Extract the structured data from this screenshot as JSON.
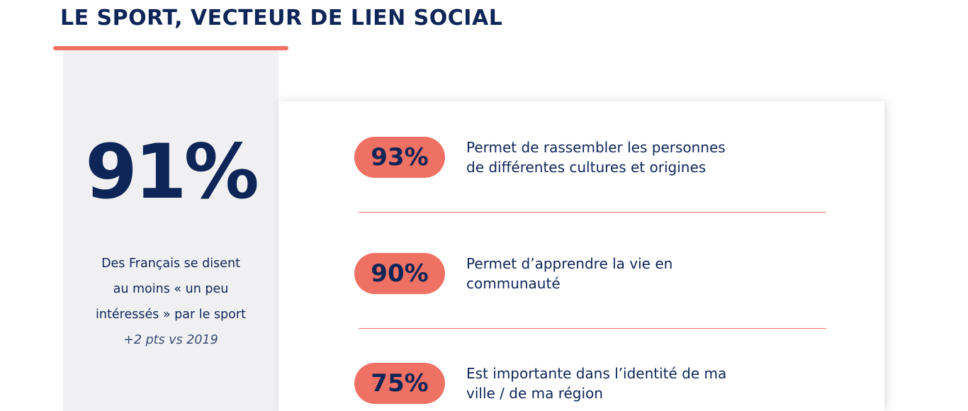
{
  "header": {
    "title": "LE SPORT, VECTEUR DE LIEN SOCIAL"
  },
  "summary": {
    "stat": "91%",
    "description_lines": [
      "Des Français se disent",
      "au moins « un peu",
      "intéressés » par le sport"
    ],
    "note": "+2 pts vs 2019"
  },
  "items": [
    {
      "percent": "93%",
      "lines": [
        "Permet de rassembler les personnes",
        "de différentes cultures et origines"
      ]
    },
    {
      "percent": "90%",
      "lines": [
        "Permet d’apprendre la vie en",
        "communauté"
      ]
    },
    {
      "percent": "75%",
      "lines": [
        "Est importante dans l’identité de ma",
        "ville / de ma région"
      ]
    }
  ],
  "colors": {
    "navy": "#0e2557",
    "coral": "#ef7163",
    "panel_gray": "#f0f0f2"
  }
}
